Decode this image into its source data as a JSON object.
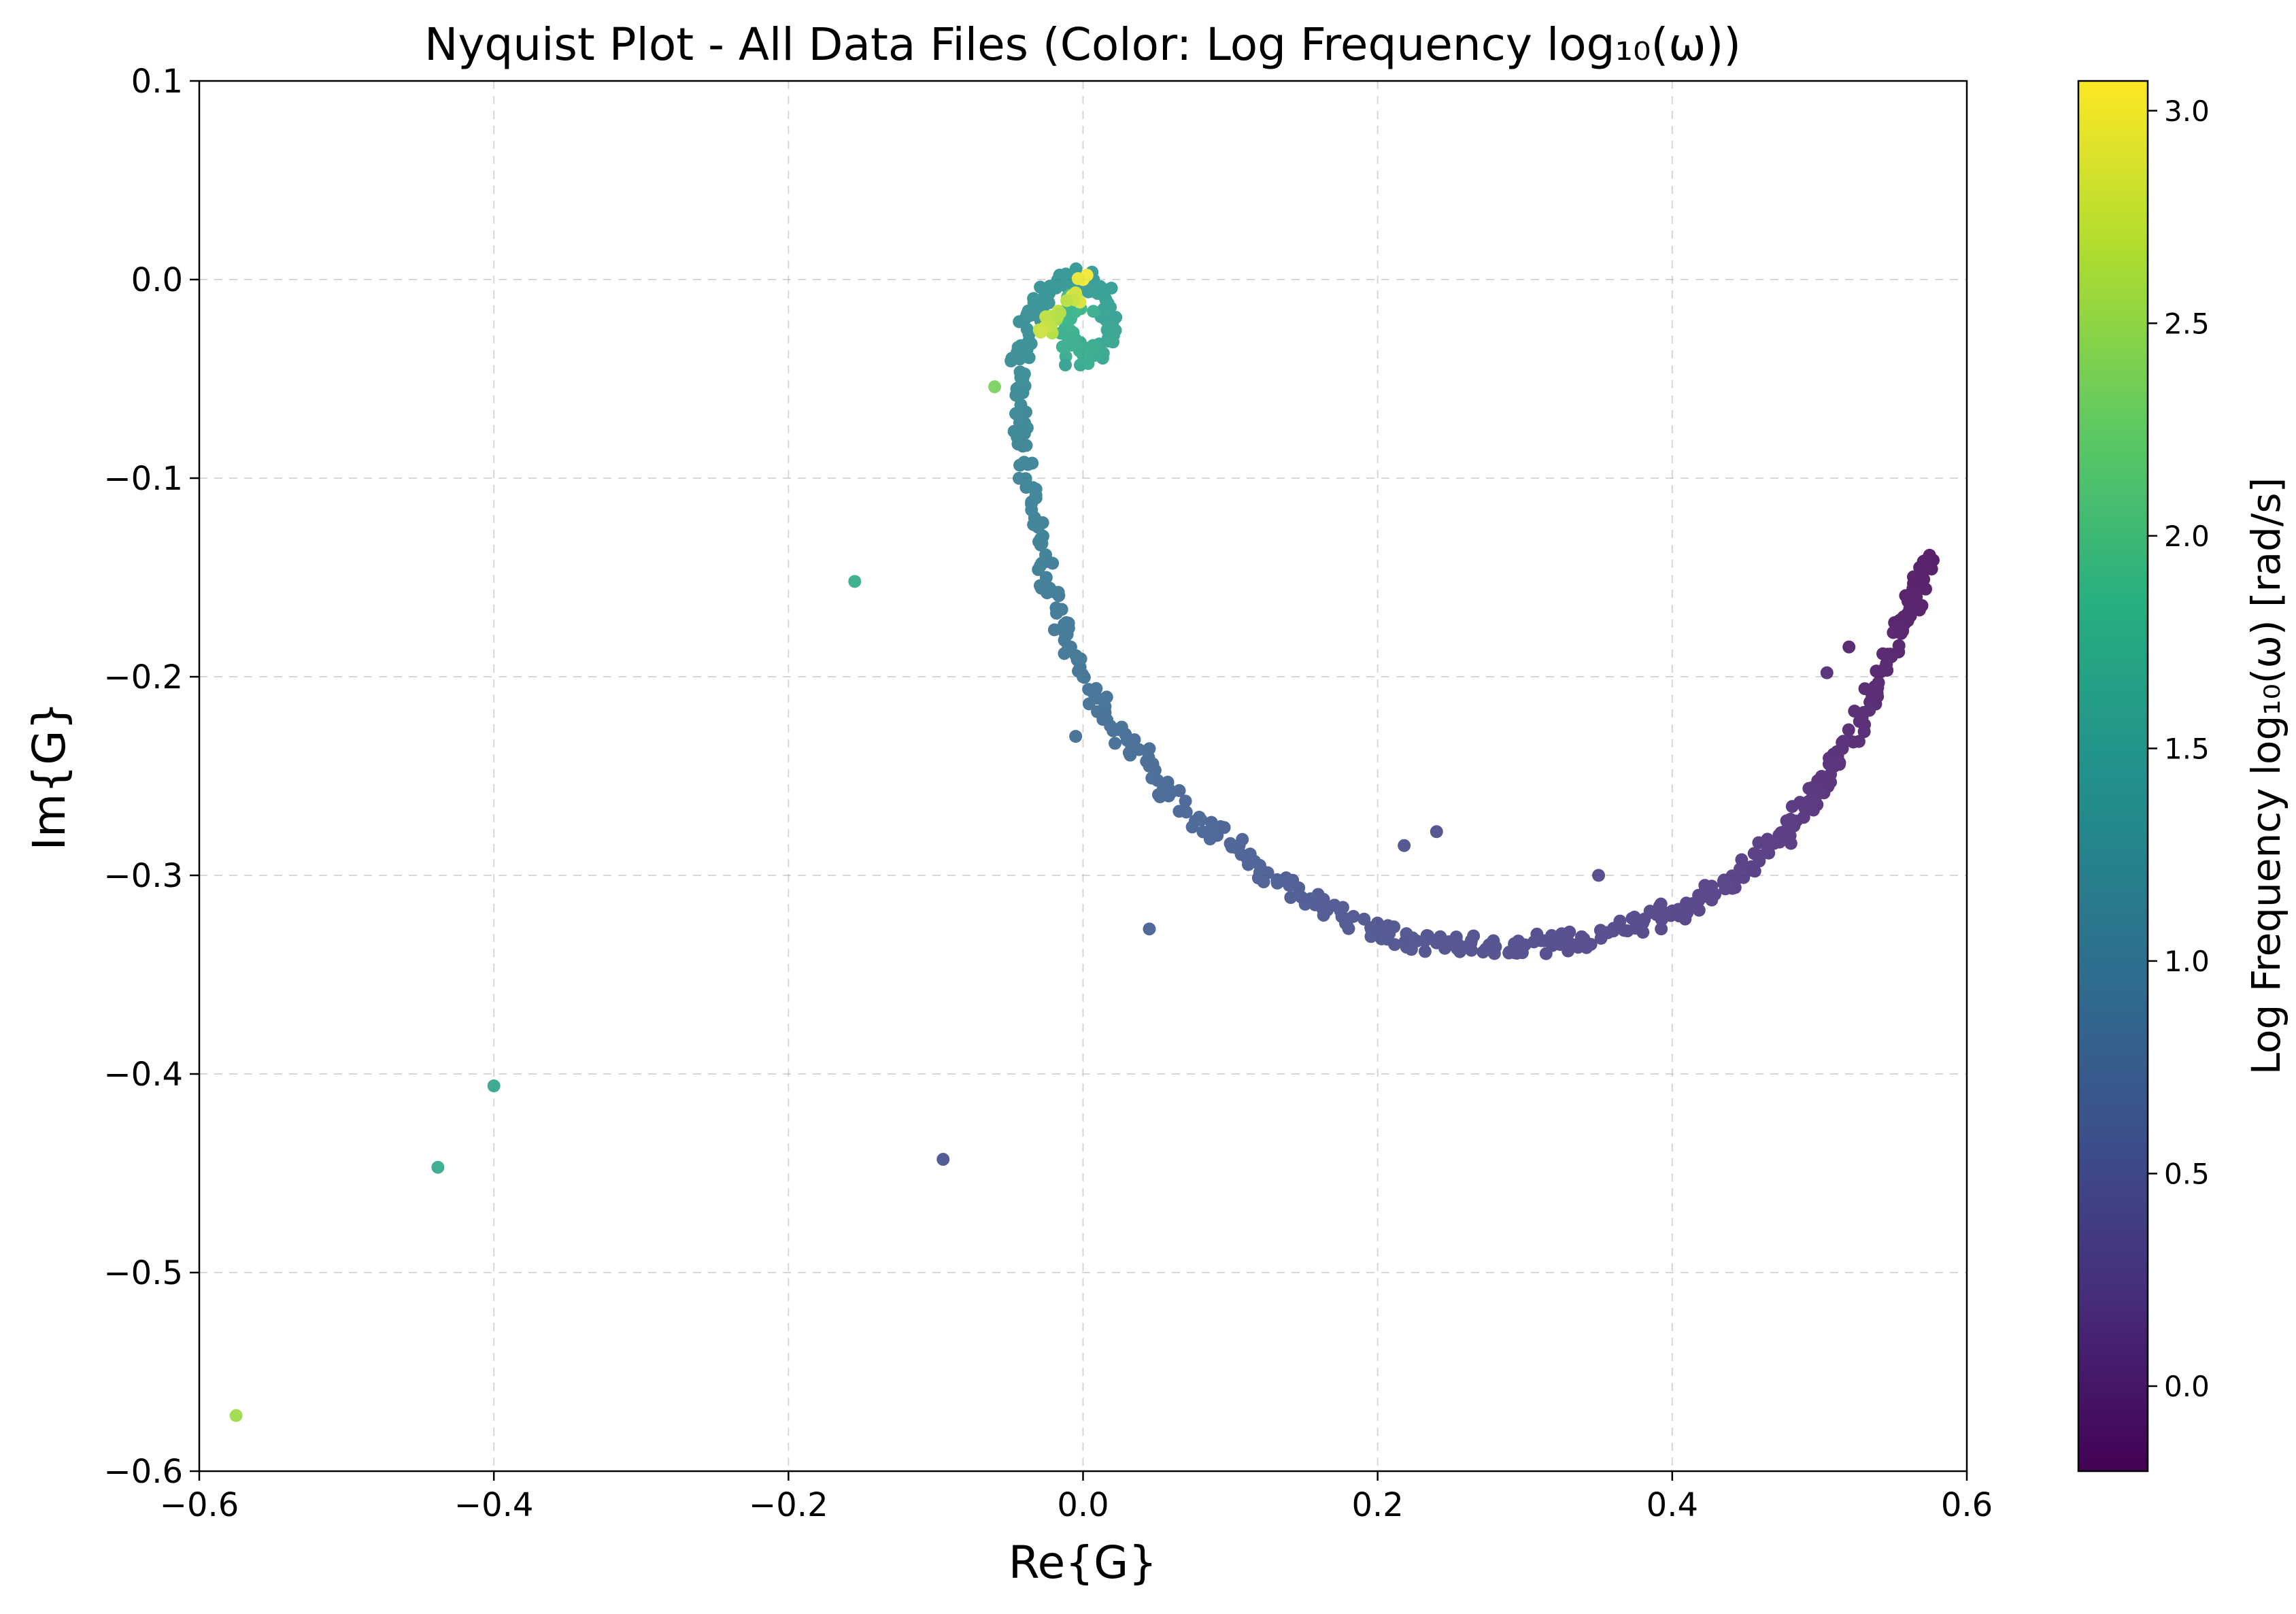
{
  "chart_data": {
    "type": "scatter",
    "title": "Nyquist Plot - All Data Files (Color: Log Frequency log₁₀(ω))",
    "xlabel": "Re{G}",
    "ylabel": "Im{G}",
    "xlim": [
      -0.6,
      0.6
    ],
    "ylim": [
      -0.6,
      0.1
    ],
    "xticks": [
      -0.6,
      -0.4,
      -0.2,
      0.0,
      0.2,
      0.4,
      0.6
    ],
    "yticks": [
      -0.6,
      -0.5,
      -0.4,
      -0.3,
      -0.2,
      -0.1,
      0.0,
      0.1
    ],
    "xtick_labels": [
      "−0.6",
      "−0.4",
      "−0.2",
      "0.0",
      "0.2",
      "0.4",
      "0.6"
    ],
    "ytick_labels": [
      "−0.6",
      "−0.5",
      "−0.4",
      "−0.3",
      "−0.2",
      "−0.1",
      "0.0",
      "0.1"
    ],
    "grid": true,
    "colormap": "viridis",
    "colorbar": {
      "label": "Log Frequency log₁₀(ω) [rad/s]",
      "range": [
        -0.2,
        3.07
      ],
      "ticks": [
        0.0,
        0.5,
        1.0,
        1.5,
        2.0,
        2.5,
        3.0
      ],
      "tick_labels": [
        "0.0",
        "0.5",
        "1.0",
        "1.5",
        "2.0",
        "2.5",
        "3.0"
      ]
    },
    "series": [
      {
        "points": [
          [
            0.575,
            -0.14,
            -0.18
          ],
          [
            0.57,
            -0.148,
            -0.16
          ],
          [
            0.565,
            -0.158,
            -0.14
          ],
          [
            0.56,
            -0.168,
            -0.12
          ],
          [
            0.555,
            -0.178,
            -0.1
          ],
          [
            0.548,
            -0.19,
            -0.08
          ],
          [
            0.54,
            -0.203,
            -0.05
          ],
          [
            0.53,
            -0.218,
            -0.02
          ],
          [
            0.52,
            -0.232,
            0.01
          ],
          [
            0.51,
            -0.245,
            0.04
          ],
          [
            0.5,
            -0.255,
            0.07
          ],
          [
            0.49,
            -0.266,
            0.1
          ],
          [
            0.478,
            -0.277,
            0.13
          ],
          [
            0.465,
            -0.287,
            0.16
          ],
          [
            0.45,
            -0.296,
            0.19
          ],
          [
            0.435,
            -0.304,
            0.22
          ],
          [
            0.42,
            -0.311,
            0.25
          ],
          [
            0.4,
            -0.318,
            0.28
          ],
          [
            0.38,
            -0.324,
            0.3
          ],
          [
            0.36,
            -0.328,
            0.32
          ],
          [
            0.34,
            -0.332,
            0.34
          ],
          [
            0.32,
            -0.334,
            0.36
          ],
          [
            0.3,
            -0.335,
            0.38
          ],
          [
            0.28,
            -0.336,
            0.4
          ],
          [
            0.26,
            -0.336,
            0.42
          ],
          [
            0.24,
            -0.334,
            0.44
          ],
          [
            0.22,
            -0.332,
            0.46
          ],
          [
            0.2,
            -0.328,
            0.48
          ],
          [
            0.18,
            -0.322,
            0.5
          ],
          [
            0.16,
            -0.314,
            0.53
          ],
          [
            0.14,
            -0.305,
            0.56
          ],
          [
            0.12,
            -0.295,
            0.6
          ],
          [
            0.1,
            -0.284,
            0.64
          ],
          [
            0.08,
            -0.272,
            0.68
          ],
          [
            0.06,
            -0.258,
            0.72
          ],
          [
            0.045,
            -0.245,
            0.76
          ],
          [
            0.03,
            -0.232,
            0.8
          ],
          [
            0.015,
            -0.218,
            0.84
          ],
          [
            0.0,
            -0.2,
            0.88
          ],
          [
            -0.01,
            -0.185,
            0.92
          ],
          [
            -0.018,
            -0.168,
            0.96
          ],
          [
            -0.025,
            -0.15,
            1.0
          ],
          [
            -0.03,
            -0.132,
            1.04
          ],
          [
            -0.035,
            -0.112,
            1.08
          ],
          [
            -0.04,
            -0.092,
            1.12
          ],
          [
            -0.043,
            -0.072,
            1.16
          ],
          [
            -0.045,
            -0.055,
            1.2
          ],
          [
            -0.043,
            -0.04,
            1.24
          ],
          [
            -0.038,
            -0.025,
            1.28
          ],
          [
            -0.03,
            -0.012,
            1.32
          ],
          [
            -0.02,
            -0.003,
            1.36
          ],
          [
            -0.01,
            0.0,
            1.4
          ],
          [
            0.0,
            0.0,
            1.44
          ],
          [
            0.01,
            -0.004,
            1.48
          ],
          [
            0.017,
            -0.012,
            1.52
          ],
          [
            0.02,
            -0.022,
            1.56
          ],
          [
            0.017,
            -0.031,
            1.6
          ],
          [
            0.01,
            -0.037,
            1.64
          ],
          [
            0.0,
            -0.038,
            1.68
          ],
          [
            -0.008,
            -0.033,
            1.72
          ],
          [
            -0.012,
            -0.024,
            1.76
          ],
          [
            -0.01,
            -0.015,
            1.8
          ],
          [
            -0.005,
            -0.008,
            1.9
          ],
          [
            0.0,
            0.0,
            3.05
          ],
          [
            -0.018,
            -0.02,
            2.6
          ],
          [
            -0.028,
            -0.026,
            2.8
          ],
          [
            0.505,
            -0.198,
            0.05
          ],
          [
            0.52,
            -0.185,
            -0.05
          ],
          [
            0.48,
            -0.28,
            0.15
          ],
          [
            0.35,
            -0.3,
            0.35
          ],
          [
            0.24,
            -0.278,
            0.42
          ],
          [
            0.218,
            -0.285,
            0.45
          ],
          [
            0.045,
            -0.327,
            0.65
          ],
          [
            -0.005,
            -0.23,
            0.85
          ],
          [
            -0.095,
            -0.443,
            0.5
          ],
          [
            0.007,
            -0.016,
            1.75
          ],
          [
            -0.012,
            -0.043,
            1.55
          ],
          [
            -0.06,
            -0.054,
            2.35
          ],
          [
            -0.155,
            -0.152,
            1.75
          ],
          [
            -0.4,
            -0.406,
            1.65
          ],
          [
            -0.438,
            -0.447,
            1.7
          ],
          [
            -0.575,
            -0.572,
            2.55
          ]
        ]
      }
    ]
  }
}
